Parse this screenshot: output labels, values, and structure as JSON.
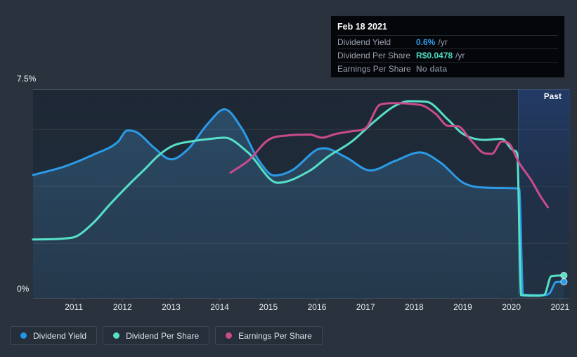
{
  "tooltip": {
    "date": "Feb 18 2021",
    "rows": [
      {
        "label": "Dividend Yield",
        "value": "0.6%",
        "unit": "/yr",
        "value_color": "#2da1f0"
      },
      {
        "label": "Dividend Per Share",
        "value": "R$0.0478",
        "unit": "/yr",
        "value_color": "#4fdcc3"
      },
      {
        "label": "Earnings Per Share",
        "value": "No data",
        "unit": "",
        "value_color": "#6e7883"
      }
    ]
  },
  "legend": {
    "items": [
      {
        "label": "Dividend Yield",
        "color": "#2196e8"
      },
      {
        "label": "Dividend Per Share",
        "color": "#56e0c8"
      },
      {
        "label": "Earnings Per Share",
        "color": "#c94b8c"
      }
    ]
  },
  "chart_data": {
    "type": "line",
    "title": "",
    "x_axis": {
      "min": 2010.16,
      "max": 2021.19,
      "ticks": [
        {
          "value": 2011,
          "label": "2011"
        },
        {
          "value": 2012,
          "label": "2012"
        },
        {
          "value": 2013,
          "label": "2013"
        },
        {
          "value": 2014,
          "label": "2014"
        },
        {
          "value": 2015,
          "label": "2015"
        },
        {
          "value": 2016,
          "label": "2016"
        },
        {
          "value": 2017,
          "label": "2017"
        },
        {
          "value": 2018,
          "label": "2018"
        },
        {
          "value": 2019,
          "label": "2019"
        },
        {
          "value": 2020,
          "label": "2020"
        },
        {
          "value": 2021,
          "label": "2021"
        }
      ]
    },
    "y_axis": {
      "min": 0,
      "max": 7.5,
      "max_label": "7.5%",
      "min_label": "0%",
      "unit": "%"
    },
    "gridline_values": [
      7.5,
      6.06,
      4.02,
      1.97
    ],
    "past_band": {
      "start": 2020.13,
      "end": 2021.19,
      "label": "Past"
    },
    "scale_note": "Dividend Per Share and Earnings Per Share curves are overlaid on the same 0-7.5 visual axis; yield values are percent per year",
    "series": [
      {
        "name": "Dividend Yield",
        "color": "#2b9be7",
        "area_fill": true,
        "end_dot": true,
        "points": [
          [
            2010.16,
            4.42
          ],
          [
            2010.8,
            4.72
          ],
          [
            2011.4,
            5.15
          ],
          [
            2011.9,
            5.6
          ],
          [
            2012.1,
            6.02
          ],
          [
            2012.3,
            5.95
          ],
          [
            2012.65,
            5.4
          ],
          [
            2013.0,
            4.98
          ],
          [
            2013.35,
            5.35
          ],
          [
            2013.75,
            6.25
          ],
          [
            2014.1,
            6.78
          ],
          [
            2014.45,
            6.1
          ],
          [
            2014.8,
            4.95
          ],
          [
            2015.12,
            4.4
          ],
          [
            2015.5,
            4.6
          ],
          [
            2016.0,
            5.33
          ],
          [
            2016.15,
            5.38
          ],
          [
            2016.6,
            5.05
          ],
          [
            2017.1,
            4.58
          ],
          [
            2017.6,
            4.92
          ],
          [
            2018.12,
            5.23
          ],
          [
            2018.55,
            4.85
          ],
          [
            2019.0,
            4.15
          ],
          [
            2019.4,
            3.97
          ],
          [
            2019.9,
            3.95
          ],
          [
            2020.16,
            3.93
          ],
          [
            2020.24,
            0.12
          ],
          [
            2020.65,
            0.1
          ],
          [
            2020.78,
            0.16
          ],
          [
            2020.92,
            0.57
          ],
          [
            2021.08,
            0.58
          ]
        ]
      },
      {
        "name": "Dividend Per Share",
        "color": "#56e0c8",
        "area_fill": false,
        "end_dot": true,
        "points": [
          [
            2010.16,
            2.1
          ],
          [
            2010.97,
            2.17
          ],
          [
            2011.4,
            2.7
          ],
          [
            2011.75,
            3.38
          ],
          [
            2012.13,
            4.07
          ],
          [
            2012.47,
            4.65
          ],
          [
            2012.76,
            5.15
          ],
          [
            2013.05,
            5.48
          ],
          [
            2013.42,
            5.63
          ],
          [
            2013.77,
            5.71
          ],
          [
            2014.1,
            5.76
          ],
          [
            2014.58,
            5.23
          ],
          [
            2015.19,
            4.14
          ],
          [
            2015.85,
            4.57
          ],
          [
            2016.23,
            5.08
          ],
          [
            2016.7,
            5.6
          ],
          [
            2017.18,
            6.34
          ],
          [
            2017.57,
            6.87
          ],
          [
            2017.9,
            7.07
          ],
          [
            2018.25,
            7.05
          ],
          [
            2018.7,
            6.4
          ],
          [
            2019.0,
            5.9
          ],
          [
            2019.45,
            5.68
          ],
          [
            2019.8,
            5.72
          ],
          [
            2020.05,
            5.3
          ],
          [
            2020.12,
            5.18
          ],
          [
            2020.2,
            0.1
          ],
          [
            2020.55,
            0.08
          ],
          [
            2020.68,
            0.12
          ],
          [
            2020.82,
            0.78
          ],
          [
            2021.08,
            0.81
          ]
        ]
      },
      {
        "name": "Earnings Per Share",
        "color": "#c94b8c",
        "area_fill": false,
        "end_dot": false,
        "points": [
          [
            2014.22,
            4.5
          ],
          [
            2014.6,
            4.95
          ],
          [
            2015.0,
            5.68
          ],
          [
            2015.4,
            5.84
          ],
          [
            2015.85,
            5.87
          ],
          [
            2016.1,
            5.76
          ],
          [
            2016.4,
            5.9
          ],
          [
            2016.75,
            6.0
          ],
          [
            2017.0,
            6.1
          ],
          [
            2017.3,
            6.95
          ],
          [
            2017.6,
            7.0
          ],
          [
            2017.95,
            6.97
          ],
          [
            2018.2,
            6.9
          ],
          [
            2018.45,
            6.6
          ],
          [
            2018.7,
            6.18
          ],
          [
            2018.9,
            6.17
          ],
          [
            2019.15,
            5.7
          ],
          [
            2019.45,
            5.2
          ],
          [
            2019.6,
            5.18
          ],
          [
            2019.8,
            5.62
          ],
          [
            2019.95,
            5.55
          ],
          [
            2020.15,
            4.88
          ],
          [
            2020.4,
            4.25
          ],
          [
            2020.6,
            3.65
          ],
          [
            2020.75,
            3.26
          ]
        ]
      }
    ]
  }
}
